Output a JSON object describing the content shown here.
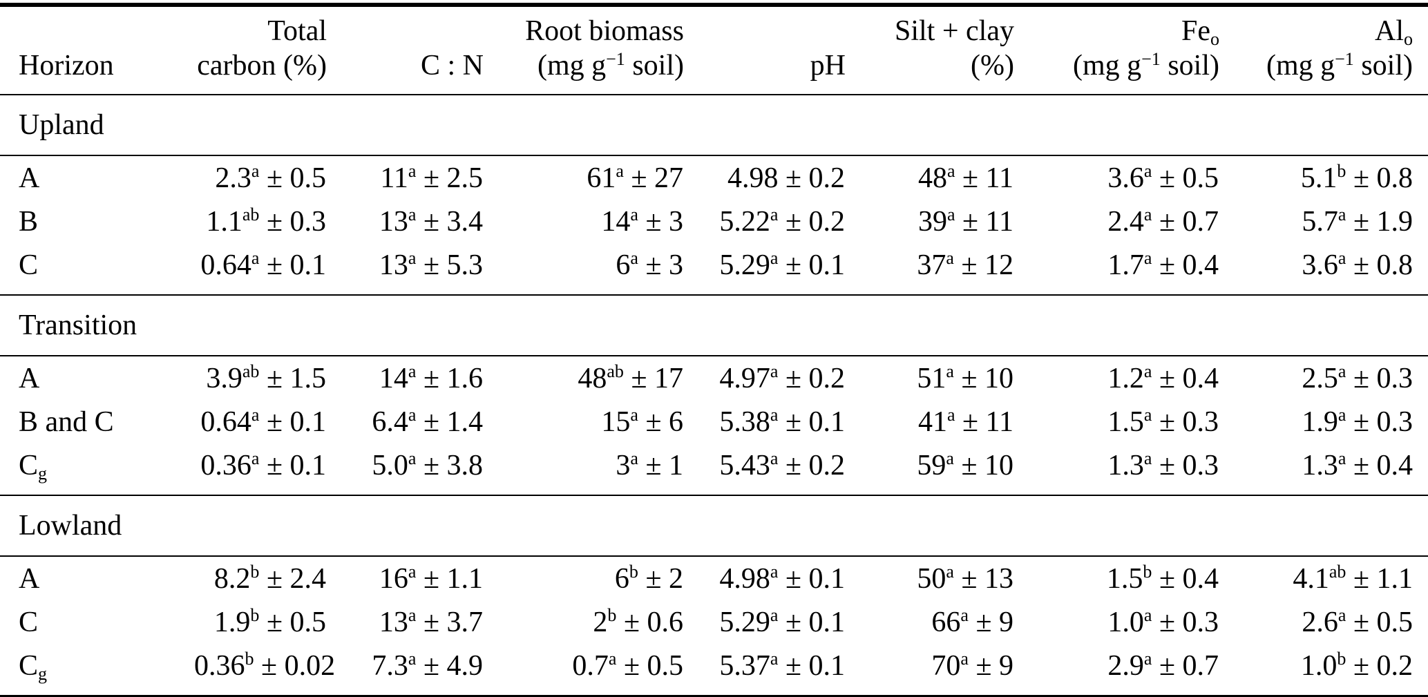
{
  "colors": {
    "background": "#ffffff",
    "text": "#000000",
    "rule": "#000000"
  },
  "table": {
    "columns": [
      {
        "id": "horizon",
        "line1": "",
        "line2": "Horizon",
        "align": "left"
      },
      {
        "id": "total-carbon",
        "line1": "Total",
        "line2": "carbon (%)",
        "align": "right"
      },
      {
        "id": "c-n-ratio",
        "line1": "",
        "line2": "C : N",
        "align": "right"
      },
      {
        "id": "root-biomass",
        "line1": "Root biomass",
        "line2": "(mg g^{−1} soil)",
        "align": "right"
      },
      {
        "id": "ph",
        "line1": "",
        "line2": "pH",
        "align": "right"
      },
      {
        "id": "silt-clay",
        "line1": "Silt + clay",
        "line2": "(%)",
        "align": "right"
      },
      {
        "id": "fe-oxalate",
        "line1": "Fe_{o}",
        "line2": "(mg g^{−1} soil)",
        "align": "right"
      },
      {
        "id": "al-oxalate",
        "line1": "Al_{o}",
        "line2": "(mg g^{−1} soil)",
        "align": "right"
      }
    ],
    "sections": [
      {
        "label": "Upland",
        "rows": [
          {
            "horizon": "A",
            "cells": [
              "2.3^{a} ± 0.5",
              "11^{a} ± 2.5",
              "61^{a} ± 27",
              "4.98 ± 0.2",
              "48^{a} ± 11",
              "3.6^{a} ± 0.5",
              "5.1^{b} ± 0.8"
            ]
          },
          {
            "horizon": "B",
            "cells": [
              "1.1^{ab} ± 0.3",
              "13^{a} ± 3.4",
              "14^{a} ± 3",
              "5.22^{a} ± 0.2",
              "39^{a} ± 11",
              "2.4^{a} ± 0.7",
              "5.7^{a} ± 1.9"
            ]
          },
          {
            "horizon": "C",
            "cells": [
              "0.64^{a} ± 0.1",
              "13^{a} ± 5.3",
              "6^{a} ± 3",
              "5.29^{a} ± 0.1",
              "37^{a} ± 12",
              "1.7^{a} ± 0.4",
              "3.6^{a} ± 0.8"
            ]
          }
        ]
      },
      {
        "label": "Transition",
        "rows": [
          {
            "horizon": "A",
            "cells": [
              "3.9^{ab} ± 1.5",
              "14^{a} ± 1.6",
              "48^{ab} ± 17",
              "4.97^{a} ± 0.2",
              "51^{a} ± 10",
              "1.2^{a} ± 0.4",
              "2.5^{a} ± 0.3"
            ]
          },
          {
            "horizon": "B and C",
            "cells": [
              "0.64^{a} ± 0.1",
              "6.4^{a} ± 1.4",
              "15^{a} ± 6",
              "5.38^{a} ± 0.1",
              "41^{a} ± 11",
              "1.5^{a} ± 0.3",
              "1.9^{a} ± 0.3"
            ]
          },
          {
            "horizon": "C_{g}",
            "cells": [
              "0.36^{a} ± 0.1",
              "5.0^{a} ± 3.8",
              "3^{a} ± 1",
              "5.43^{a} ± 0.2",
              "59^{a} ± 10",
              "1.3^{a} ± 0.3",
              "1.3^{a} ± 0.4"
            ]
          }
        ]
      },
      {
        "label": "Lowland",
        "rows": [
          {
            "horizon": "A",
            "cells": [
              "8.2^{b} ± 2.4",
              "16^{a} ± 1.1",
              "6^{b} ± 2",
              "4.98^{a} ± 0.1",
              "50^{a} ± 13",
              "1.5^{b} ± 0.4",
              "4.1^{ab} ± 1.1"
            ]
          },
          {
            "horizon": "C",
            "cells": [
              "1.9^{b} ± 0.5",
              "13^{a} ± 3.7",
              "2^{b} ± 0.6",
              "5.29^{a} ± 0.1",
              "66^{a} ± 9",
              "1.0^{a} ± 0.3",
              "2.6^{a} ± 0.5"
            ]
          },
          {
            "horizon": "C_{g}",
            "cells": [
              "0.36^{b} ± 0.02",
              "7.3^{a} ± 4.9",
              "0.7^{a} ± 0.5",
              "5.37^{a} ± 0.1",
              "70^{a} ± 9",
              "2.9^{a} ± 0.7",
              "1.0^{b} ± 0.2"
            ]
          }
        ]
      }
    ]
  }
}
